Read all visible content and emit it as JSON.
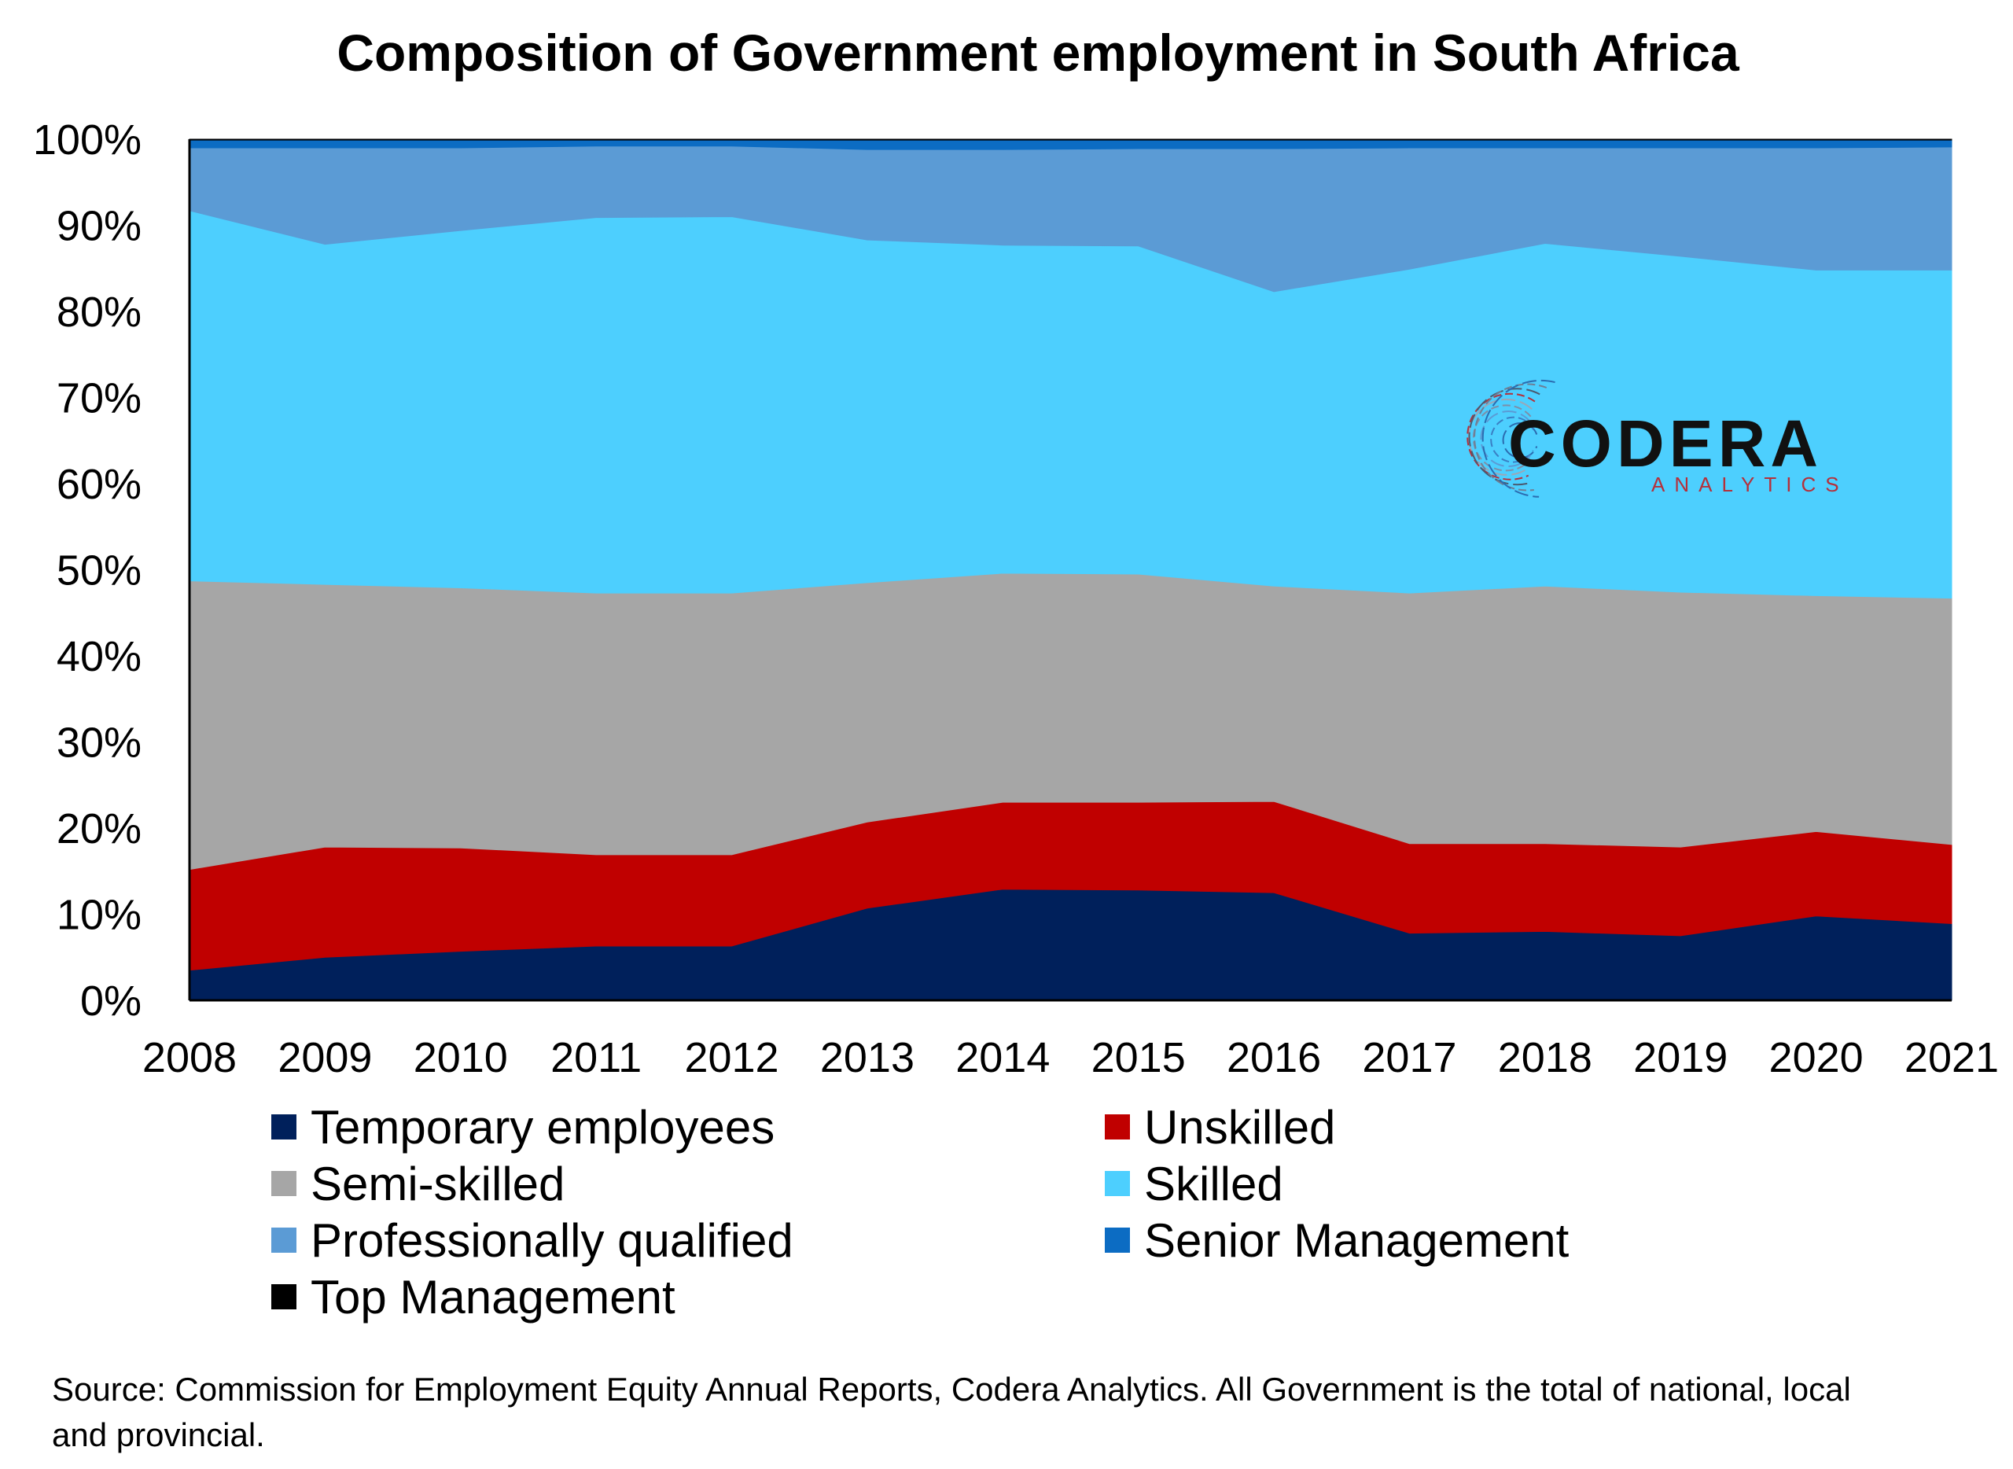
{
  "chart_data": {
    "type": "area",
    "stacked": true,
    "normalized_percent": true,
    "title": "Composition of Government employment in South Africa",
    "x": [
      "2008",
      "2009",
      "2010",
      "2011",
      "2012",
      "2013",
      "2014",
      "2015",
      "2016",
      "2017",
      "2018",
      "2019",
      "2020",
      "2021"
    ],
    "ylim": [
      0,
      100
    ],
    "yticks": [
      "0%",
      "10%",
      "20%",
      "30%",
      "40%",
      "50%",
      "60%",
      "70%",
      "80%",
      "90%",
      "100%"
    ],
    "grid": false,
    "legend_position": "bottom",
    "series": [
      {
        "name": "Temporary employees",
        "color": "#00205b",
        "values": [
          3.5,
          5,
          5.7,
          6.3,
          6.3,
          10.7,
          12.9,
          12.8,
          12.5,
          7.8,
          8,
          7.5,
          9.8,
          8.9
        ]
      },
      {
        "name": "Unskilled",
        "color": "#c00000",
        "values": [
          11.7,
          12.8,
          12,
          10.6,
          10.6,
          10,
          10.1,
          10.2,
          10.6,
          10.4,
          10.2,
          10.3,
          9.8,
          9.2
        ]
      },
      {
        "name": "Semi-skilled",
        "color": "#a6a6a6",
        "values": [
          33.5,
          30.5,
          30.2,
          30.4,
          30.4,
          27.8,
          26.6,
          26.5,
          25,
          29.1,
          29.9,
          29.6,
          27.4,
          28.6
        ]
      },
      {
        "name": "Skilled",
        "color": "#4dcffe",
        "values": [
          43,
          39.5,
          41.5,
          43.6,
          43.7,
          39.8,
          38.1,
          38.1,
          34.2,
          37.6,
          39.8,
          39,
          37.8,
          38.1
        ]
      },
      {
        "name": "Professionally qualified",
        "color": "#5b9bd5",
        "values": [
          7.3,
          11.2,
          9.6,
          8.3,
          8.2,
          10.5,
          11.1,
          11.3,
          16.6,
          14.1,
          11.1,
          12.6,
          14.2,
          14.3
        ]
      },
      {
        "name": "Senior Management",
        "color": "#0c6cc3",
        "values": [
          0.9,
          0.9,
          0.9,
          0.7,
          0.7,
          1.1,
          1.1,
          1.0,
          1.0,
          0.9,
          0.9,
          0.9,
          0.9,
          0.8
        ]
      },
      {
        "name": "Top Management",
        "color": "#000000",
        "values": [
          0.1,
          0.1,
          0.1,
          0.1,
          0.1,
          0.1,
          0.1,
          0.1,
          0.1,
          0.1,
          0.1,
          0.1,
          0.1,
          0.1
        ]
      }
    ]
  },
  "logo": {
    "word": "CODERA",
    "sub": "ANALYTICS",
    "sub_color": "#b5303a"
  },
  "source_note": "Source: Commission for Employment Equity Annual Reports, Codera Analytics. All Government is the total of national, local and provincial."
}
